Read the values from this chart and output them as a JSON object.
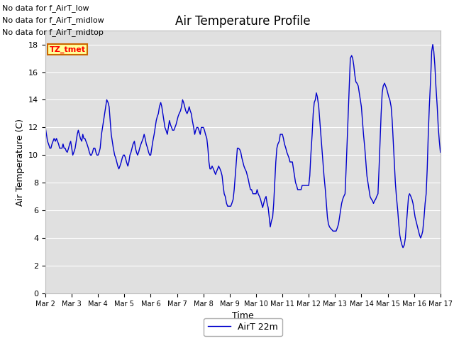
{
  "title": "Air Temperature Profile",
  "xlabel": "Time",
  "ylabel": "Air Temperature (C)",
  "line_color": "#0000CC",
  "line_label": "AirT 22m",
  "ylim": [
    0,
    19
  ],
  "yticks": [
    0,
    2,
    4,
    6,
    8,
    10,
    12,
    14,
    16,
    18
  ],
  "xtick_labels": [
    "Mar 2",
    "Mar 3",
    "Mar 4",
    "Mar 5",
    "Mar 6",
    "Mar 7",
    "Mar 8",
    "Mar 9",
    "Mar 10",
    "Mar 11",
    "Mar 12",
    "Mar 13",
    "Mar 14",
    "Mar 15",
    "Mar 16",
    "Mar 17"
  ],
  "no_data_texts": [
    "No data for f_AirT_low",
    "No data for f_AirT_midlow",
    "No data for f_AirT_midtop"
  ],
  "tz_tmet_label": "TZ_tmet",
  "bg_color": "#ffffff",
  "plot_bg_color": "#e0e0e0",
  "grid_color": "#ffffff",
  "title_fontsize": 12,
  "axis_label_fontsize": 9,
  "tick_fontsize": 8,
  "nodata_fontsize": 8,
  "time_data": [
    0.0,
    0.04,
    0.08,
    0.12,
    0.17,
    0.21,
    0.25,
    0.29,
    0.33,
    0.38,
    0.42,
    0.46,
    0.5,
    0.54,
    0.58,
    0.63,
    0.67,
    0.71,
    0.75,
    0.79,
    0.83,
    0.88,
    0.92,
    0.96,
    1.0,
    1.04,
    1.08,
    1.13,
    1.17,
    1.21,
    1.25,
    1.29,
    1.33,
    1.38,
    1.42,
    1.46,
    1.5,
    1.54,
    1.58,
    1.63,
    1.67,
    1.71,
    1.75,
    1.79,
    1.83,
    1.88,
    1.92,
    1.96,
    2.0,
    2.04,
    2.08,
    2.13,
    2.17,
    2.21,
    2.25,
    2.29,
    2.33,
    2.38,
    2.42,
    2.46,
    2.5,
    2.54,
    2.58,
    2.63,
    2.67,
    2.71,
    2.75,
    2.79,
    2.83,
    2.88,
    2.92,
    2.96,
    3.0,
    3.04,
    3.08,
    3.13,
    3.17,
    3.21,
    3.25,
    3.29,
    3.33,
    3.38,
    3.42,
    3.46,
    3.5,
    3.54,
    3.58,
    3.63,
    3.67,
    3.71,
    3.75,
    3.79,
    3.83,
    3.88,
    3.92,
    3.96,
    4.0,
    4.04,
    4.08,
    4.13,
    4.17,
    4.21,
    4.25,
    4.29,
    4.33,
    4.38,
    4.42,
    4.46,
    4.5,
    4.54,
    4.58,
    4.63,
    4.67,
    4.71,
    4.75,
    4.79,
    4.83,
    4.88,
    4.92,
    4.96,
    5.0,
    5.04,
    5.08,
    5.13,
    5.17,
    5.21,
    5.25,
    5.29,
    5.33,
    5.38,
    5.42,
    5.46,
    5.5,
    5.54,
    5.58,
    5.63,
    5.67,
    5.71,
    5.75,
    5.79,
    5.83,
    5.88,
    5.92,
    5.96,
    6.0,
    6.04,
    6.08,
    6.13,
    6.17,
    6.21,
    6.25,
    6.29,
    6.33,
    6.38,
    6.42,
    6.46,
    6.5,
    6.54,
    6.58,
    6.63,
    6.67,
    6.71,
    6.75,
    6.79,
    6.83,
    6.88,
    6.92,
    6.96,
    7.0,
    7.04,
    7.08,
    7.13,
    7.17,
    7.21,
    7.25,
    7.29,
    7.33,
    7.38,
    7.42,
    7.46,
    7.5,
    7.54,
    7.58,
    7.63,
    7.67,
    7.71,
    7.75,
    7.79,
    7.83,
    7.88,
    7.92,
    7.96,
    8.0,
    8.04,
    8.08,
    8.13,
    8.17,
    8.21,
    8.25,
    8.29,
    8.33,
    8.38,
    8.42,
    8.46,
    8.5,
    8.54,
    8.58,
    8.63,
    8.67,
    8.71,
    8.75,
    8.79,
    8.83,
    8.88,
    8.92,
    8.96,
    9.0,
    9.04,
    9.08,
    9.13,
    9.17,
    9.21,
    9.25,
    9.29,
    9.33,
    9.38,
    9.42,
    9.46,
    9.5,
    9.54,
    9.58,
    9.63,
    9.67,
    9.71,
    9.75,
    9.79,
    9.83,
    9.88,
    9.92,
    9.96,
    10.0,
    10.04,
    10.08,
    10.13,
    10.17,
    10.21,
    10.25,
    10.29,
    10.33,
    10.38,
    10.42,
    10.46,
    10.5,
    10.54,
    10.58,
    10.63,
    10.67,
    10.71,
    10.75,
    10.79,
    10.83,
    10.88,
    10.92,
    10.96,
    11.0,
    11.04,
    11.08,
    11.13,
    11.17,
    11.21,
    11.25,
    11.29,
    11.33,
    11.38,
    11.42,
    11.46,
    11.5,
    11.54,
    11.58,
    11.63,
    11.67,
    11.71,
    11.75,
    11.79,
    11.83,
    11.88,
    11.92,
    11.96,
    12.0,
    12.04,
    12.08,
    12.13,
    12.17,
    12.21,
    12.25,
    12.29,
    12.33,
    12.38,
    12.42,
    12.46,
    12.5,
    12.54,
    12.58,
    12.63,
    12.67,
    12.71,
    12.75,
    12.79,
    12.83,
    12.88,
    12.92,
    12.96,
    13.0,
    13.04,
    13.08,
    13.13,
    13.17,
    13.21,
    13.25,
    13.29,
    13.33,
    13.38,
    13.42,
    13.46,
    13.5,
    13.54,
    13.58,
    13.63,
    13.67,
    13.71,
    13.75,
    13.79,
    13.83,
    13.88,
    13.92,
    13.96,
    14.0,
    14.04,
    14.08,
    14.13,
    14.17,
    14.21,
    14.25,
    14.29,
    14.33,
    14.38,
    14.42,
    14.46,
    14.5,
    14.54,
    14.58,
    14.63,
    14.67,
    14.71,
    14.75,
    14.79,
    14.83,
    14.88,
    14.92,
    14.96,
    15.0
  ],
  "temp_data": [
    12.0,
    11.5,
    11.0,
    10.8,
    10.5,
    10.5,
    10.8,
    11.0,
    11.2,
    11.0,
    11.2,
    11.0,
    10.8,
    10.5,
    10.5,
    10.5,
    10.8,
    10.5,
    10.5,
    10.3,
    10.2,
    10.5,
    10.8,
    11.0,
    10.5,
    10.0,
    10.2,
    10.5,
    11.0,
    11.5,
    11.8,
    11.5,
    11.2,
    11.0,
    11.5,
    11.2,
    11.2,
    11.0,
    10.8,
    10.5,
    10.2,
    10.0,
    10.0,
    10.2,
    10.5,
    10.5,
    10.2,
    10.0,
    10.0,
    10.2,
    10.5,
    11.5,
    12.0,
    12.5,
    13.0,
    13.5,
    14.0,
    13.8,
    13.5,
    12.5,
    11.5,
    11.0,
    10.5,
    10.0,
    9.8,
    9.5,
    9.2,
    9.0,
    9.2,
    9.5,
    9.8,
    10.0,
    10.0,
    9.8,
    9.5,
    9.2,
    9.5,
    10.0,
    10.2,
    10.5,
    10.8,
    11.0,
    10.5,
    10.2,
    10.0,
    10.2,
    10.5,
    10.8,
    11.0,
    11.2,
    11.5,
    11.2,
    10.8,
    10.5,
    10.2,
    10.0,
    10.0,
    10.5,
    11.0,
    11.5,
    12.0,
    12.5,
    12.8,
    13.0,
    13.5,
    13.8,
    13.5,
    13.0,
    12.5,
    12.0,
    11.8,
    11.5,
    12.0,
    12.5,
    12.2,
    12.0,
    11.8,
    11.8,
    12.0,
    12.2,
    12.5,
    12.8,
    13.0,
    13.2,
    13.5,
    14.0,
    13.8,
    13.5,
    13.2,
    13.0,
    13.2,
    13.5,
    13.2,
    13.0,
    12.5,
    12.0,
    11.5,
    11.8,
    12.0,
    12.0,
    11.8,
    11.5,
    12.0,
    12.0,
    12.0,
    11.8,
    11.5,
    11.2,
    10.5,
    9.5,
    9.0,
    9.0,
    9.2,
    9.0,
    8.8,
    8.6,
    8.8,
    9.0,
    9.2,
    9.0,
    8.8,
    8.5,
    7.8,
    7.2,
    7.0,
    6.5,
    6.3,
    6.3,
    6.3,
    6.3,
    6.5,
    6.8,
    7.5,
    8.5,
    9.5,
    10.5,
    10.5,
    10.4,
    10.2,
    9.8,
    9.5,
    9.2,
    9.0,
    8.8,
    8.5,
    8.2,
    7.8,
    7.5,
    7.5,
    7.2,
    7.2,
    7.2,
    7.2,
    7.5,
    7.2,
    7.0,
    6.8,
    6.5,
    6.2,
    6.5,
    6.8,
    7.0,
    6.5,
    6.2,
    5.5,
    4.8,
    5.2,
    5.5,
    6.5,
    8.0,
    9.5,
    10.5,
    10.8,
    11.0,
    11.5,
    11.5,
    11.5,
    11.2,
    10.8,
    10.5,
    10.2,
    10.0,
    9.8,
    9.5,
    9.5,
    9.5,
    9.0,
    8.5,
    8.0,
    7.8,
    7.5,
    7.5,
    7.5,
    7.5,
    7.8,
    7.8,
    7.8,
    7.8,
    7.8,
    7.8,
    7.8,
    8.5,
    10.0,
    11.5,
    13.0,
    13.8,
    14.0,
    14.5,
    14.2,
    13.5,
    12.5,
    11.5,
    10.5,
    9.5,
    8.5,
    7.5,
    6.5,
    5.5,
    5.0,
    4.8,
    4.7,
    4.6,
    4.5,
    4.5,
    4.5,
    4.5,
    4.7,
    5.0,
    5.5,
    6.0,
    6.5,
    6.8,
    7.0,
    7.2,
    9.0,
    11.0,
    13.0,
    15.0,
    17.0,
    17.2,
    17.0,
    16.5,
    15.8,
    15.3,
    15.2,
    15.0,
    14.5,
    14.0,
    13.5,
    12.5,
    11.5,
    10.5,
    9.5,
    8.5,
    8.0,
    7.5,
    7.0,
    6.8,
    6.7,
    6.5,
    6.7,
    6.8,
    7.0,
    7.2,
    9.0,
    11.0,
    13.0,
    14.5,
    15.0,
    15.2,
    15.0,
    14.8,
    14.5,
    14.2,
    14.0,
    13.5,
    12.5,
    11.0,
    9.5,
    8.0,
    7.0,
    6.0,
    5.0,
    4.2,
    3.8,
    3.5,
    3.3,
    3.5,
    4.0,
    5.0,
    6.0,
    7.0,
    7.2,
    7.0,
    6.8,
    6.5,
    6.0,
    5.5,
    5.2,
    4.8,
    4.5,
    4.2,
    4.0,
    4.2,
    4.5,
    5.5,
    6.5,
    7.2,
    9.0,
    11.5,
    13.5,
    15.5,
    17.5,
    18.0,
    17.5,
    16.5,
    15.0,
    13.5,
    12.0,
    11.0,
    10.2
  ]
}
